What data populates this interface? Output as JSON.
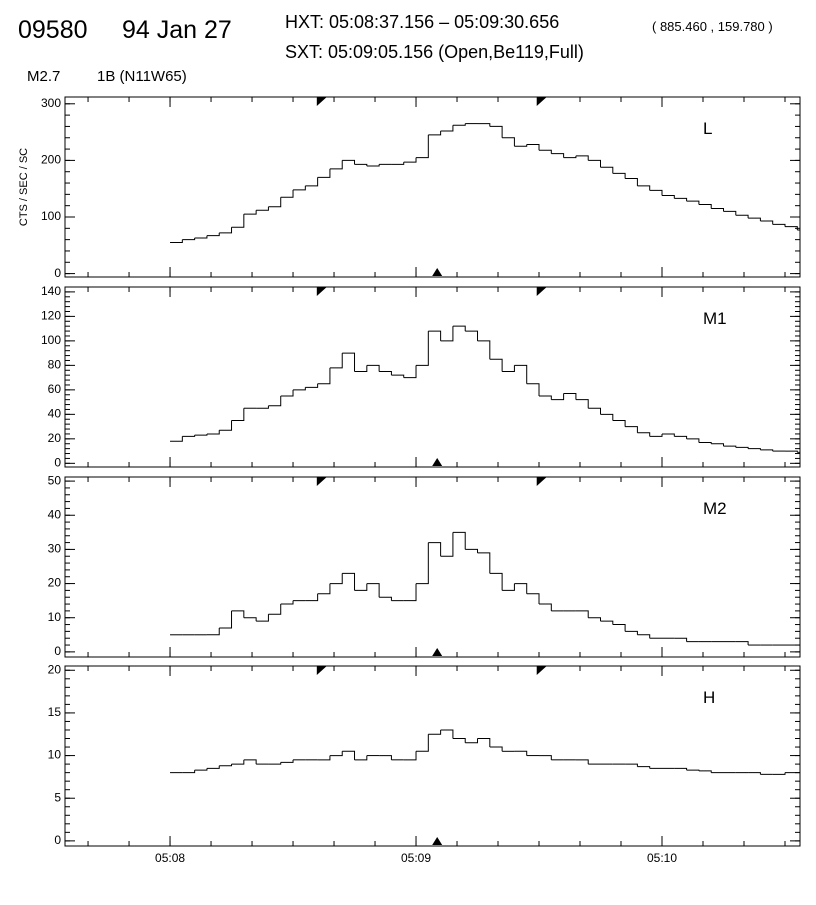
{
  "header": {
    "event": "09580",
    "date": "94 Jan 27",
    "hxt": "HXT: 05:08:37.156 – 05:09:30.656",
    "coords": "( 885.460 , 159.780 )",
    "sxt": "SXT: 05:09:05.156 (Open,Be119,Full)",
    "goes_class": "M2.7",
    "h_alpha": "1B (N11W65)",
    "hxt_interval": [
      308.617,
      309.511
    ],
    "sxt_time": 309.086
  },
  "chart_data": [
    {
      "type": "line",
      "drawstyle": "steps",
      "label": "L",
      "ylabel": "CTS / SEC / SC",
      "color": "#000000",
      "x": [
        308.0,
        308.05,
        308.1,
        308.15,
        308.2,
        308.25,
        308.3,
        308.35,
        308.4,
        308.45,
        308.5,
        308.55,
        308.6,
        308.65,
        308.7,
        308.75,
        308.8,
        308.85,
        308.9,
        308.95,
        309.0,
        309.05,
        309.1,
        309.15,
        309.2,
        309.25,
        309.3,
        309.35,
        309.4,
        309.45,
        309.5,
        309.55,
        309.6,
        309.65,
        309.7,
        309.75,
        309.8,
        309.85,
        309.9,
        309.95,
        310.0,
        310.05,
        310.1,
        310.15,
        310.2,
        310.25,
        310.3,
        310.35,
        310.4,
        310.45,
        310.5,
        310.55
      ],
      "values": [
        55,
        60,
        63,
        67,
        72,
        82,
        105,
        112,
        118,
        135,
        148,
        155,
        170,
        185,
        200,
        193,
        190,
        193,
        193,
        197,
        205,
        245,
        252,
        262,
        265,
        265,
        260,
        240,
        225,
        228,
        218,
        212,
        205,
        208,
        200,
        188,
        177,
        168,
        155,
        147,
        138,
        133,
        128,
        122,
        115,
        110,
        103,
        98,
        93,
        87,
        83,
        77
      ],
      "xlim": [
        307.573,
        310.561
      ],
      "xticks": [
        {
          "value": 308,
          "label": "05:08"
        },
        {
          "value": 309,
          "label": "05:09"
        },
        {
          "value": 310,
          "label": "05:10"
        }
      ],
      "ylim": [
        -6,
        312
      ],
      "yticks": [
        0,
        100,
        200,
        300
      ]
    },
    {
      "type": "line",
      "drawstyle": "steps",
      "label": "M1",
      "color": "#000000",
      "x": [
        308.0,
        308.05,
        308.1,
        308.15,
        308.2,
        308.25,
        308.3,
        308.35,
        308.4,
        308.45,
        308.5,
        308.55,
        308.6,
        308.65,
        308.7,
        308.75,
        308.8,
        308.85,
        308.9,
        308.95,
        309.0,
        309.05,
        309.1,
        309.15,
        309.2,
        309.25,
        309.3,
        309.35,
        309.4,
        309.45,
        309.5,
        309.55,
        309.6,
        309.65,
        309.7,
        309.75,
        309.8,
        309.85,
        309.9,
        309.95,
        310.0,
        310.05,
        310.1,
        310.15,
        310.2,
        310.25,
        310.3,
        310.35,
        310.4,
        310.45,
        310.5,
        310.55
      ],
      "values": [
        18,
        22,
        23,
        24,
        27,
        35,
        45,
        45,
        47,
        55,
        60,
        62,
        65,
        78,
        90,
        75,
        80,
        75,
        72,
        70,
        80,
        108,
        100,
        112,
        108,
        100,
        85,
        75,
        80,
        65,
        55,
        52,
        57,
        52,
        45,
        40,
        35,
        30,
        25,
        22,
        24,
        22,
        20,
        17,
        16,
        14,
        13,
        12,
        11,
        10,
        10,
        9
      ],
      "xlim": [
        307.573,
        310.561
      ],
      "xticks": [
        {
          "value": 308,
          "label": "05:08"
        },
        {
          "value": 309,
          "label": "05:09"
        },
        {
          "value": 310,
          "label": "05:10"
        }
      ],
      "ylim": [
        -3,
        144
      ],
      "yticks": [
        0,
        20,
        40,
        60,
        80,
        100,
        120,
        140
      ]
    },
    {
      "type": "line",
      "drawstyle": "steps",
      "label": "M2",
      "color": "#000000",
      "x": [
        308.0,
        308.05,
        308.1,
        308.15,
        308.2,
        308.25,
        308.3,
        308.35,
        308.4,
        308.45,
        308.5,
        308.55,
        308.6,
        308.65,
        308.7,
        308.75,
        308.8,
        308.85,
        308.9,
        308.95,
        309.0,
        309.05,
        309.1,
        309.15,
        309.2,
        309.25,
        309.3,
        309.35,
        309.4,
        309.45,
        309.5,
        309.55,
        309.6,
        309.65,
        309.7,
        309.75,
        309.8,
        309.85,
        309.9,
        309.95,
        310.0,
        310.05,
        310.1,
        310.15,
        310.2,
        310.25,
        310.3,
        310.35,
        310.4,
        310.45,
        310.5,
        310.55
      ],
      "values": [
        5,
        5,
        5,
        5,
        7,
        12,
        10,
        9,
        11,
        14,
        15,
        15,
        17,
        20,
        23,
        18,
        20,
        16,
        15,
        15,
        20,
        32,
        28,
        35,
        30,
        29,
        23,
        18,
        20,
        17,
        14,
        12,
        12,
        12,
        10,
        9,
        8,
        6,
        5,
        4,
        4,
        4,
        3,
        3,
        3,
        3,
        3,
        2,
        2,
        2,
        2,
        2
      ],
      "xlim": [
        307.573,
        310.561
      ],
      "xticks": [
        {
          "value": 308,
          "label": "05:08"
        },
        {
          "value": 309,
          "label": "05:09"
        },
        {
          "value": 310,
          "label": "05:10"
        }
      ],
      "ylim": [
        -1.5,
        51.2
      ],
      "yticks": [
        0,
        10,
        20,
        30,
        40,
        50
      ]
    },
    {
      "type": "line",
      "drawstyle": "steps",
      "label": "H",
      "color": "#000000",
      "x": [
        308.0,
        308.05,
        308.1,
        308.15,
        308.2,
        308.25,
        308.3,
        308.35,
        308.4,
        308.45,
        308.5,
        308.55,
        308.6,
        308.65,
        308.7,
        308.75,
        308.8,
        308.85,
        308.9,
        308.95,
        309.0,
        309.05,
        309.1,
        309.15,
        309.2,
        309.25,
        309.3,
        309.35,
        309.4,
        309.45,
        309.5,
        309.55,
        309.6,
        309.65,
        309.7,
        309.75,
        309.8,
        309.85,
        309.9,
        309.95,
        310.0,
        310.05,
        310.1,
        310.15,
        310.2,
        310.25,
        310.3,
        310.35,
        310.4,
        310.45,
        310.5,
        310.55
      ],
      "values": [
        8,
        8,
        8.3,
        8.5,
        8.8,
        9,
        9.5,
        9,
        9,
        9.2,
        9.5,
        9.5,
        9.5,
        10,
        10.5,
        9.5,
        10,
        10,
        9.5,
        9.5,
        10.5,
        12.5,
        13,
        12,
        11.5,
        12,
        11,
        10.5,
        10.5,
        10,
        10,
        9.5,
        9.5,
        9.5,
        9,
        9,
        9,
        9,
        8.7,
        8.5,
        8.5,
        8.5,
        8.3,
        8.2,
        8,
        8,
        8,
        8,
        7.8,
        7.8,
        8,
        8
      ],
      "xlim": [
        307.573,
        310.561
      ],
      "xticks": [
        {
          "value": 308,
          "label": "05:08"
        },
        {
          "value": 309,
          "label": "05:09"
        },
        {
          "value": 310,
          "label": "05:10"
        }
      ],
      "show_xtick_labels": true,
      "ylim": [
        -0.6,
        20.5
      ],
      "yticks": [
        0,
        5,
        10,
        15,
        20
      ]
    }
  ]
}
